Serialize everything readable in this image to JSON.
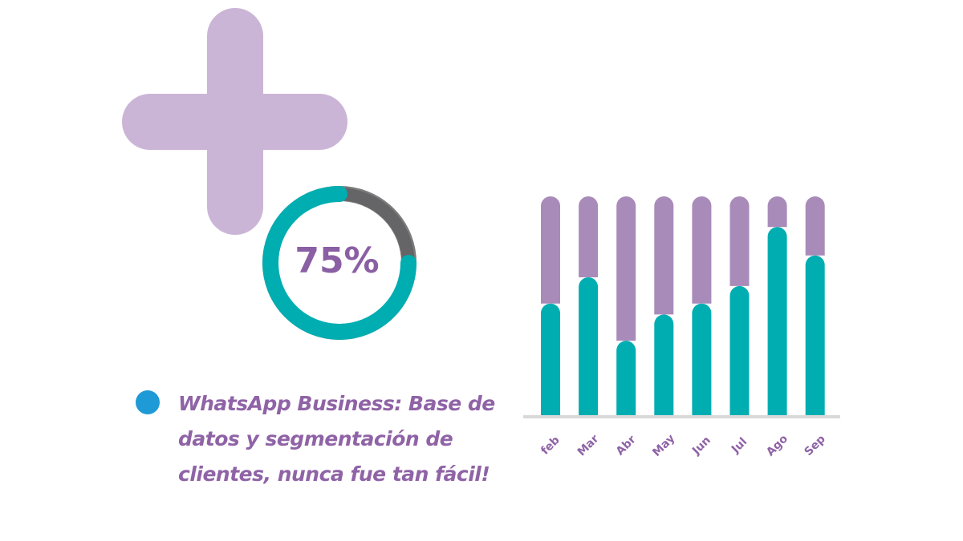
{
  "chart_data": [
    {
      "type": "donut",
      "values": [
        75,
        25
      ],
      "value_labels": [
        "75%",
        null
      ],
      "colors": [
        "#00adb1",
        "#656466"
      ]
    },
    {
      "type": "bar",
      "stacked": true,
      "categories": [
        "feb",
        "Mar",
        "Abr",
        "May",
        "Jun",
        "Jul",
        "Ago",
        "Sep"
      ],
      "series": [
        {
          "color": "#00adb1",
          "values": [
            51,
            63,
            34,
            46,
            51,
            59,
            86,
            73
          ]
        },
        {
          "color": "#a98bba",
          "values": [
            49,
            37,
            66,
            54,
            49,
            41,
            14,
            27
          ]
        }
      ],
      "ylim": [
        0,
        100
      ]
    }
  ],
  "caption": "WhatsApp Business: Base de datos y segmentación de clientes, nunca fue tan fácil!"
}
